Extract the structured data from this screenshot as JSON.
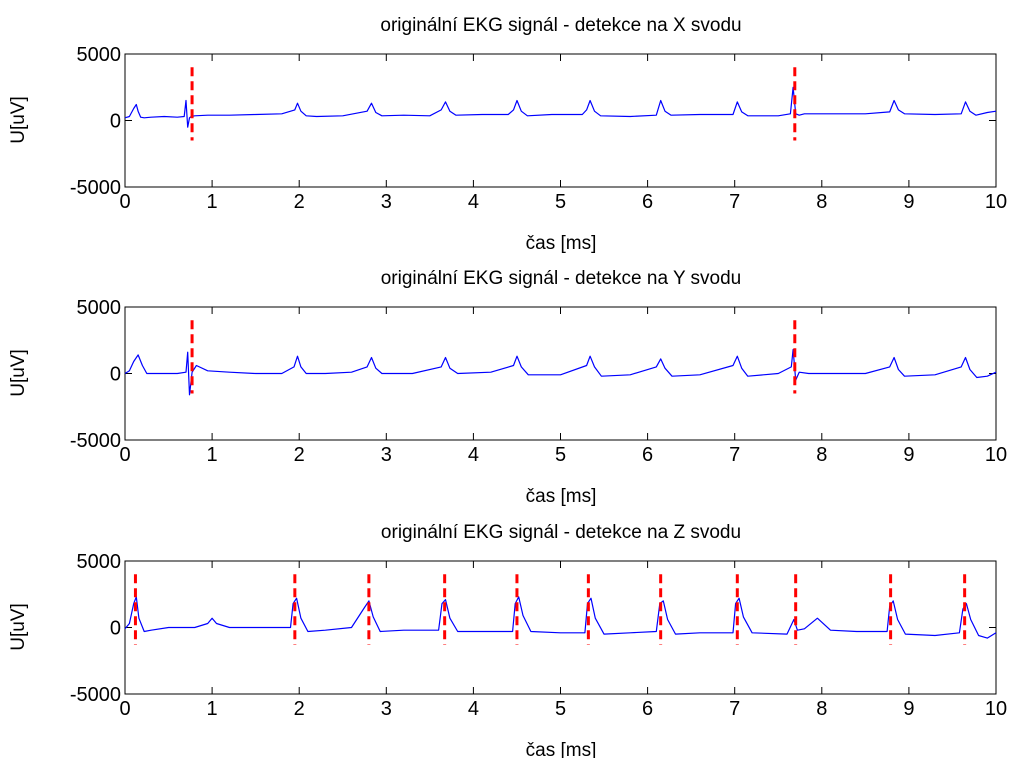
{
  "chart_data": [
    {
      "type": "line",
      "title": "originální EKG signál - detekce na X svodu",
      "xlabel": "čas [ms]",
      "ylabel": "U[uV]",
      "xlim": [
        0,
        10
      ],
      "ylim": [
        -5000,
        5000
      ],
      "xticks": [
        0,
        1,
        2,
        3,
        4,
        5,
        6,
        7,
        8,
        9,
        10
      ],
      "yticks": [
        -5000,
        0,
        5000
      ],
      "grid": false,
      "beats": [
        0.15,
        0.72,
        1.98,
        2.83,
        3.68,
        4.5,
        5.34,
        6.15,
        7.03,
        7.68,
        8.83,
        9.65
      ],
      "beat_amplitudes": [
        1200,
        1500,
        1300,
        1300,
        1400,
        1500,
        1500,
        1500,
        1400,
        2500,
        1500,
        1400
      ],
      "signal": {
        "x": [
          0,
          0.05,
          0.1,
          0.13,
          0.15,
          0.18,
          0.22,
          0.3,
          0.45,
          0.6,
          0.68,
          0.7,
          0.72,
          0.74,
          0.76,
          0.8,
          0.95,
          1.2,
          1.5,
          1.8,
          1.95,
          1.98,
          2.02,
          2.08,
          2.2,
          2.5,
          2.78,
          2.83,
          2.88,
          2.95,
          3.2,
          3.5,
          3.63,
          3.68,
          3.73,
          3.8,
          4.1,
          4.4,
          4.46,
          4.5,
          4.55,
          4.62,
          4.9,
          5.25,
          5.3,
          5.34,
          5.39,
          5.46,
          5.8,
          6.1,
          6.15,
          6.2,
          6.27,
          6.6,
          6.98,
          7.03,
          7.08,
          7.15,
          7.5,
          7.64,
          7.67,
          7.7,
          7.74,
          7.8,
          8.2,
          8.5,
          8.78,
          8.83,
          8.88,
          8.95,
          9.3,
          9.6,
          9.65,
          9.7,
          9.77,
          9.9,
          10
        ],
        "y": [
          200,
          300,
          900,
          1200,
          700,
          250,
          200,
          250,
          300,
          250,
          300,
          1500,
          -500,
          200,
          300,
          350,
          400,
          400,
          450,
          500,
          800,
          1300,
          700,
          350,
          300,
          350,
          700,
          1300,
          600,
          350,
          400,
          350,
          800,
          1400,
          700,
          400,
          450,
          450,
          800,
          1500,
          700,
          350,
          450,
          450,
          800,
          1500,
          700,
          350,
          300,
          400,
          1500,
          700,
          400,
          450,
          450,
          1400,
          650,
          350,
          350,
          500,
          2500,
          500,
          400,
          500,
          500,
          500,
          650,
          1500,
          800,
          500,
          450,
          500,
          1400,
          700,
          400,
          600,
          700
        ]
      },
      "detections": [
        0.77,
        7.69
      ],
      "detection_span": [
        -1500,
        4000
      ]
    },
    {
      "type": "line",
      "title": "originální EKG signál - detekce na Y svodu",
      "xlabel": "čas [ms]",
      "ylabel": "U[uV]",
      "xlim": [
        0,
        10
      ],
      "ylim": [
        -5000,
        5000
      ],
      "xticks": [
        0,
        1,
        2,
        3,
        4,
        5,
        6,
        7,
        8,
        9,
        10
      ],
      "yticks": [
        -5000,
        0,
        5000
      ],
      "grid": false,
      "signal": {
        "x": [
          0,
          0.05,
          0.1,
          0.15,
          0.2,
          0.25,
          0.4,
          0.6,
          0.7,
          0.72,
          0.74,
          0.77,
          0.82,
          0.95,
          1.2,
          1.5,
          1.8,
          1.94,
          1.98,
          2.02,
          2.08,
          2.3,
          2.6,
          2.78,
          2.83,
          2.88,
          2.95,
          3.3,
          3.63,
          3.68,
          3.73,
          3.82,
          4.2,
          4.46,
          4.5,
          4.55,
          4.63,
          5.0,
          5.3,
          5.34,
          5.39,
          5.47,
          5.8,
          6.1,
          6.15,
          6.2,
          6.28,
          6.6,
          6.98,
          7.03,
          7.08,
          7.15,
          7.5,
          7.65,
          7.67,
          7.7,
          7.74,
          7.85,
          8.2,
          8.5,
          8.78,
          8.83,
          8.88,
          8.95,
          9.3,
          9.6,
          9.65,
          9.7,
          9.78,
          9.9,
          10
        ],
        "y": [
          0,
          200,
          900,
          1400,
          600,
          0,
          0,
          0,
          100,
          1600,
          -1600,
          100,
          600,
          200,
          100,
          0,
          0,
          500,
          1300,
          500,
          0,
          0,
          100,
          500,
          1200,
          400,
          0,
          0,
          500,
          1200,
          400,
          0,
          100,
          600,
          1300,
          500,
          -100,
          -100,
          600,
          1300,
          500,
          -200,
          -100,
          500,
          1100,
          400,
          -200,
          -100,
          600,
          1300,
          400,
          -200,
          0,
          500,
          1800,
          -500,
          100,
          0,
          0,
          0,
          500,
          1200,
          300,
          -200,
          -100,
          500,
          1200,
          300,
          -300,
          -200,
          100
        ]
      },
      "detections": [
        0.77,
        7.69
      ],
      "detection_span": [
        -1500,
        4000
      ]
    },
    {
      "type": "line",
      "title": "originální EKG signál - detekce na Z svodu",
      "xlabel": "čas [ms]",
      "ylabel": "U[uV]",
      "xlim": [
        0,
        10
      ],
      "ylim": [
        -5000,
        5000
      ],
      "xticks": [
        0,
        1,
        2,
        3,
        4,
        5,
        6,
        7,
        8,
        9,
        10
      ],
      "yticks": [
        -5000,
        0,
        5000
      ],
      "grid": false,
      "signal": {
        "x": [
          0,
          0.05,
          0.1,
          0.13,
          0.16,
          0.22,
          0.3,
          0.5,
          0.8,
          0.95,
          1.0,
          1.05,
          1.2,
          1.6,
          1.9,
          1.93,
          1.97,
          2.02,
          2.1,
          2.3,
          2.6,
          2.75,
          2.8,
          2.85,
          2.93,
          3.2,
          3.6,
          3.64,
          3.68,
          3.73,
          3.82,
          4.1,
          4.45,
          4.48,
          4.52,
          4.57,
          4.66,
          5.0,
          5.28,
          5.31,
          5.35,
          5.4,
          5.5,
          5.8,
          6.1,
          6.14,
          6.18,
          6.23,
          6.32,
          6.6,
          6.98,
          7.01,
          7.05,
          7.1,
          7.2,
          7.6,
          7.68,
          7.72,
          7.8,
          7.95,
          8.1,
          8.4,
          8.75,
          8.78,
          8.82,
          8.87,
          8.96,
          9.3,
          9.58,
          9.62,
          9.66,
          9.71,
          9.8,
          9.9,
          10
        ],
        "y": [
          -100,
          300,
          1800,
          2300,
          700,
          -300,
          -200,
          0,
          0,
          300,
          700,
          300,
          0,
          0,
          0,
          1800,
          2200,
          700,
          -300,
          -200,
          0,
          1500,
          2000,
          800,
          -300,
          -200,
          -200,
          1800,
          2100,
          700,
          -300,
          -300,
          -300,
          1800,
          2300,
          900,
          -300,
          -400,
          -400,
          1800,
          2200,
          700,
          -500,
          -400,
          -300,
          1800,
          2000,
          600,
          -500,
          -400,
          -400,
          1800,
          2200,
          800,
          -400,
          -500,
          600,
          -200,
          -100,
          700,
          -200,
          -300,
          -300,
          1600,
          2000,
          600,
          -500,
          -600,
          -400,
          1400,
          1800,
          600,
          -600,
          -800,
          -400
        ]
      },
      "detections": [
        0.12,
        1.95,
        2.8,
        3.67,
        4.5,
        5.32,
        6.15,
        7.03,
        7.7,
        8.79,
        9.64
      ],
      "detection_span": [
        -1300,
        4000
      ]
    }
  ],
  "colors": {
    "signal": "#0000ff",
    "detection": "#ff0000",
    "axes": "#000000",
    "background": "#ffffff"
  }
}
